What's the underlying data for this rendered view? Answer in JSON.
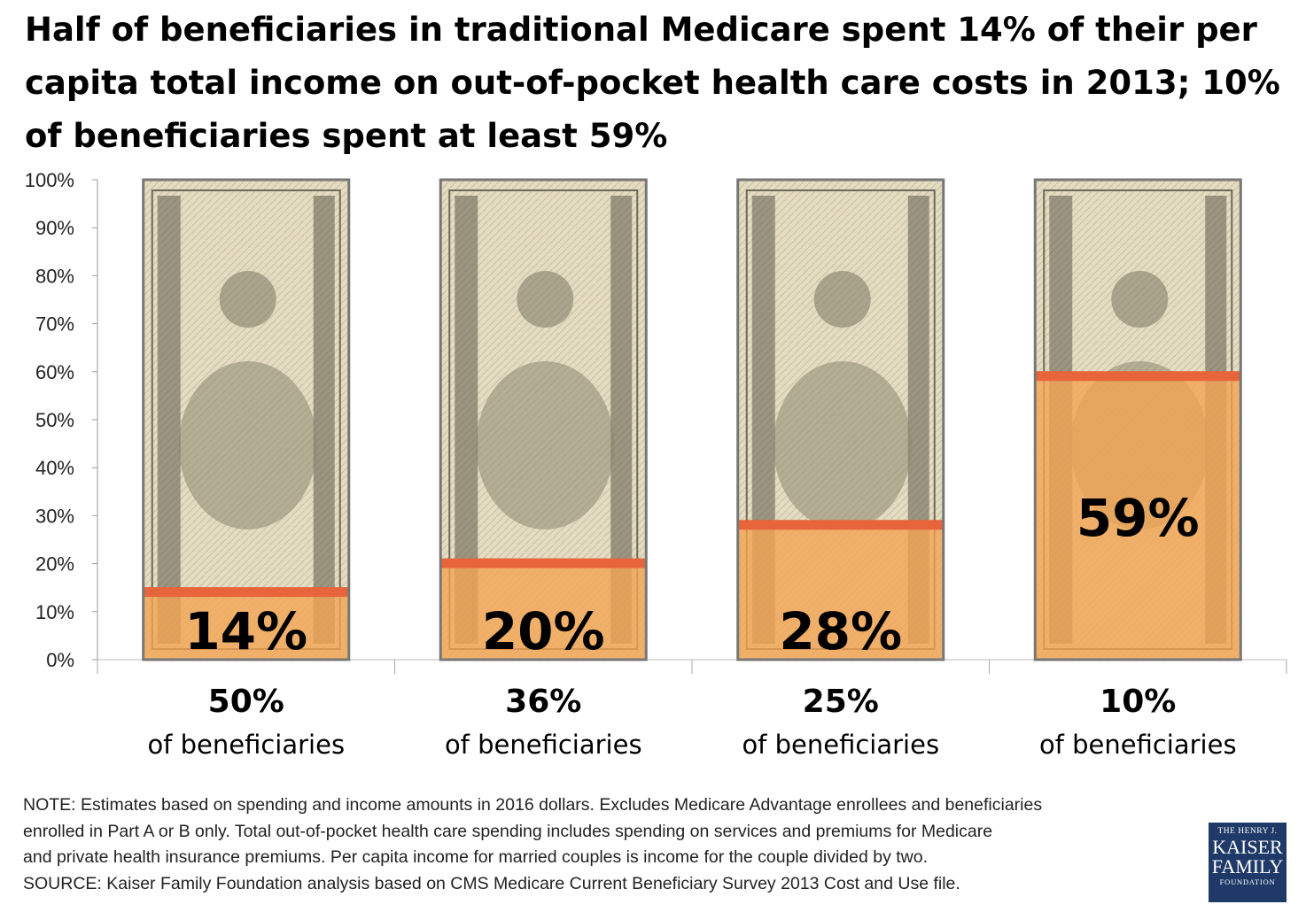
{
  "title": "Half of beneficiaries in traditional Medicare spent 14% of their per capita total income on out-of-pocket health care costs in 2013; 10% of beneficiaries spent at least 59%",
  "chart_data": {
    "type": "bar",
    "y_ticks": [
      "0%",
      "10%",
      "20%",
      "30%",
      "40%",
      "50%",
      "60%",
      "70%",
      "80%",
      "90%",
      "100%"
    ],
    "ylim": [
      0,
      100
    ],
    "grid": false,
    "categories": [
      {
        "share": "50%",
        "label": "of beneficiaries"
      },
      {
        "share": "36%",
        "label": "of beneficiaries"
      },
      {
        "share": "25%",
        "label": "of beneficiaries"
      },
      {
        "share": "10%",
        "label": "of beneficiaries"
      }
    ],
    "values": [
      14,
      20,
      28,
      59
    ],
    "value_labels": [
      "14%",
      "20%",
      "28%",
      "59%"
    ],
    "fill_color": "#f5a451",
    "line_color": "#e8643a",
    "background_image": "100-dollar-bill"
  },
  "note": [
    "NOTE: Estimates based on spending and income amounts in 2016 dollars. Excludes Medicare Advantage enrollees and beneficiaries",
    "enrolled in Part A or B only. Total out-of-pocket health care spending includes spending on services and premiums for Medicare",
    "and private health insurance premiums. Per capita income for married couples is income for the couple divided by two.",
    "SOURCE: Kaiser Family Foundation analysis based on CMS Medicare Current Beneficiary Survey 2013 Cost and Use file."
  ],
  "logo": {
    "line1": "THE HENRY J.",
    "line2": "KAISER",
    "line3": "FAMILY",
    "line4": "FOUNDATION"
  }
}
